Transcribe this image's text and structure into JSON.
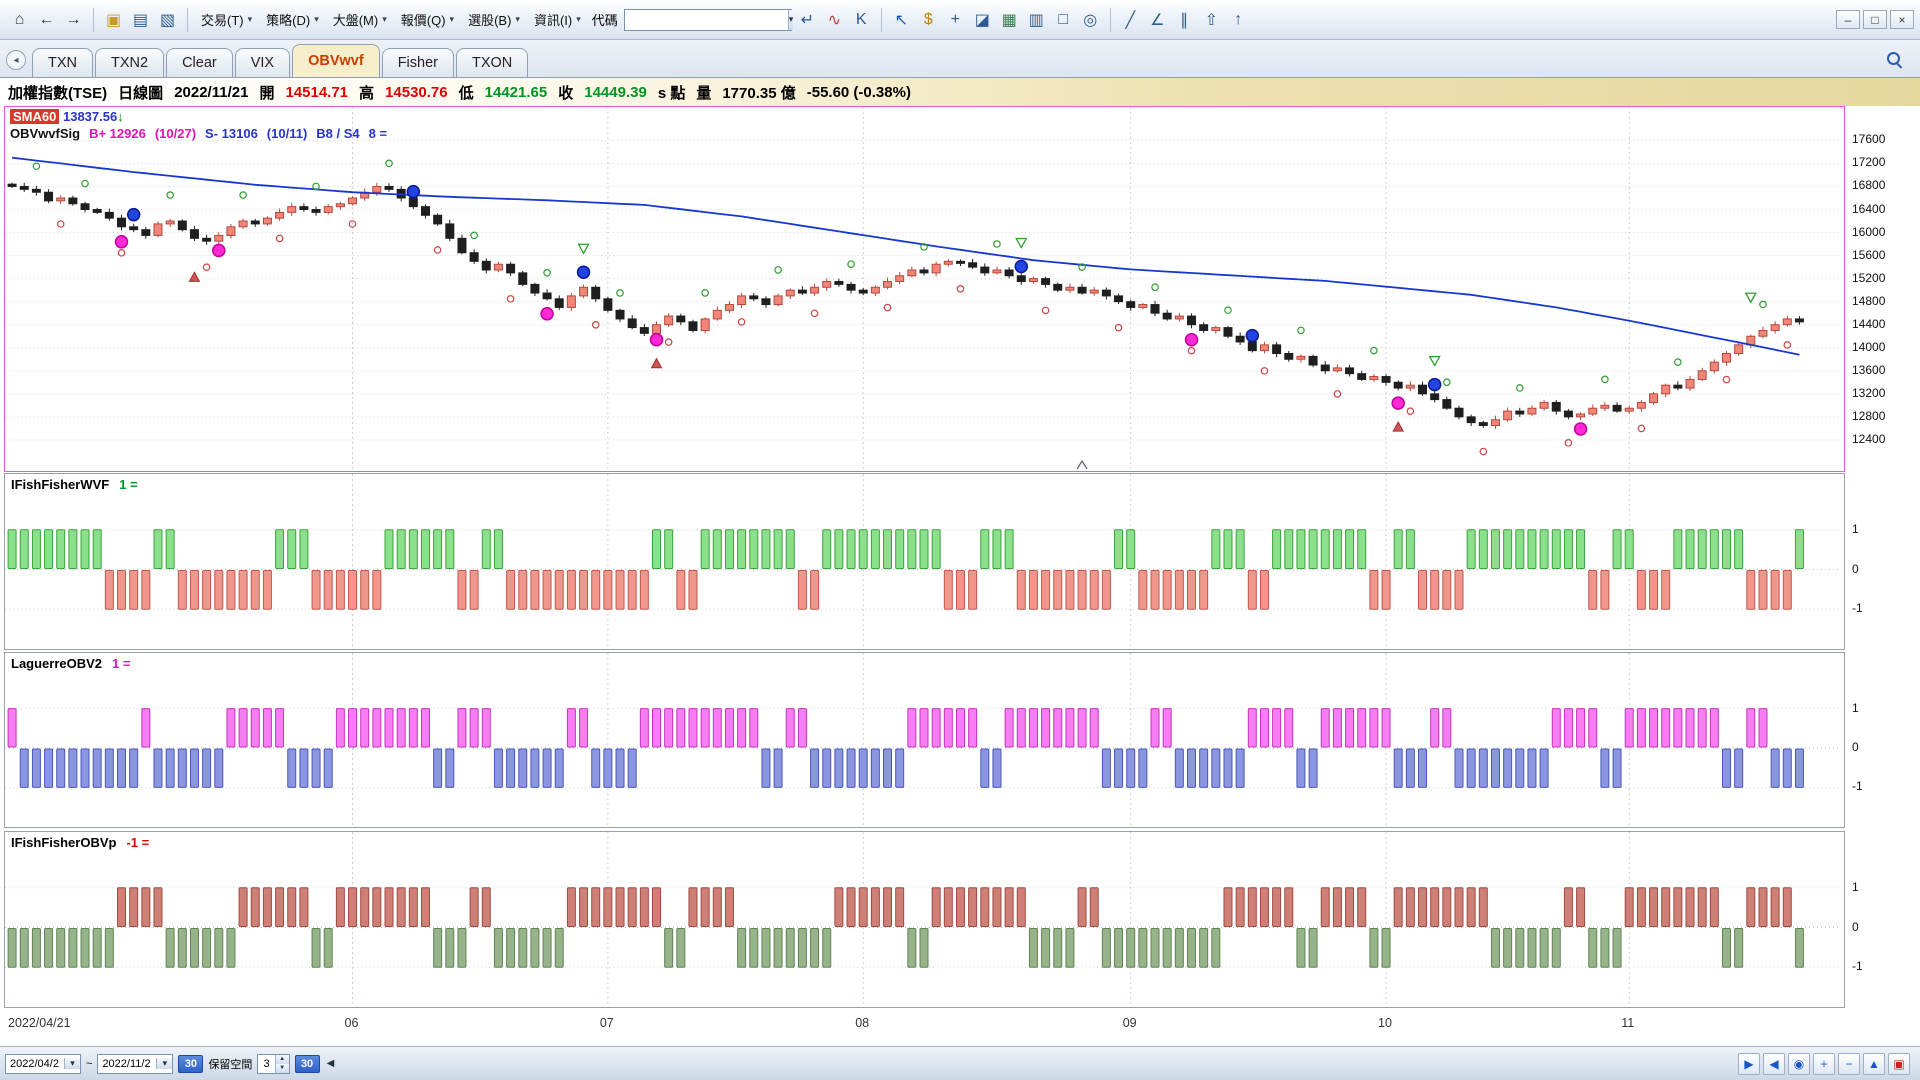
{
  "window_controls": {
    "minimize": "–",
    "maximize": "□",
    "close": "×"
  },
  "toolbar": {
    "nav_icons": [
      {
        "name": "home-icon",
        "glyph": "⌂",
        "color": "#444444"
      },
      {
        "name": "back-icon",
        "glyph": "←",
        "color": "#333333"
      },
      {
        "name": "forward-icon",
        "glyph": "→",
        "color": "#333333"
      }
    ],
    "file_icons": [
      {
        "name": "open-folder-icon",
        "glyph": "▣",
        "color": "#c9972a"
      },
      {
        "name": "print-icon",
        "glyph": "▤",
        "color": "#2c5c8f"
      },
      {
        "name": "new-chart-icon",
        "glyph": "▧",
        "color": "#2c5c8f"
      }
    ],
    "menus": [
      {
        "name": "menu-trade",
        "label": "交易(T)"
      },
      {
        "name": "menu-strategy",
        "label": "策略(D)"
      },
      {
        "name": "menu-market",
        "label": "大盤(M)"
      },
      {
        "name": "menu-quote",
        "label": "報價(Q)"
      },
      {
        "name": "menu-stock-screener",
        "label": "選股(B)"
      },
      {
        "name": "menu-info",
        "label": "資訊(I)"
      }
    ],
    "code_label": "代碼",
    "code_value": "",
    "tools_a": [
      {
        "name": "enter-icon",
        "glyph": "↵",
        "color": "#2c5c8f"
      },
      {
        "name": "line-chart-icon",
        "glyph": "∿",
        "color": "#c03a3a"
      },
      {
        "name": "kline-icon",
        "glyph": "K",
        "color": "#2c5c8f"
      }
    ],
    "tools_b": [
      {
        "name": "cursor-icon",
        "glyph": "↖",
        "color": "#1a57c4"
      },
      {
        "name": "dollar-icon",
        "glyph": "$",
        "color": "#b8860b"
      },
      {
        "name": "pan-icon",
        "glyph": "+",
        "color": "#2c5c8f"
      },
      {
        "name": "eraser-icon",
        "glyph": "◪",
        "color": "#2c5c8f"
      },
      {
        "name": "layers-icon",
        "glyph": "▦",
        "color": "#3a7a4a"
      },
      {
        "name": "volume-icon",
        "glyph": "▥",
        "color": "#2c5c8f"
      },
      {
        "name": "rectangle-icon",
        "glyph": "□",
        "color": "#2c5c8f"
      },
      {
        "name": "lasso-icon",
        "glyph": "◎",
        "color": "#2c5c8f"
      }
    ],
    "tools_c": [
      {
        "name": "trendline-icon",
        "glyph": "╱",
        "color": "#2c5c8f"
      },
      {
        "name": "angle-icon",
        "glyph": "∠",
        "color": "#2c5c8f"
      },
      {
        "name": "parallel-lines-icon",
        "glyph": "∥",
        "color": "#2c5c8f"
      },
      {
        "name": "export-icon",
        "glyph": "⇧",
        "color": "#2c5c8f"
      },
      {
        "name": "up-arrow-icon",
        "glyph": "↑",
        "color": "#2c5c8f"
      }
    ],
    "dropdown_arrow": "▾"
  },
  "tabs": {
    "items": [
      {
        "name": "tab-txn",
        "label": "TXN"
      },
      {
        "name": "tab-txn2",
        "label": "TXN2"
      },
      {
        "name": "tab-clear",
        "label": "Clear"
      },
      {
        "name": "tab-vix",
        "label": "VIX"
      },
      {
        "name": "tab-obvwvf",
        "label": "OBVwvf"
      },
      {
        "name": "tab-fisher",
        "label": "Fisher"
      },
      {
        "name": "tab-txon",
        "label": "TXON"
      }
    ],
    "active": "OBVwvf"
  },
  "info": {
    "segments": [
      {
        "text": "加權指數(TSE)",
        "color": "#000000"
      },
      {
        "text": "日線圖",
        "color": "#000000"
      },
      {
        "text": "2022/11/21",
        "color": "#000000"
      },
      {
        "text": "開",
        "color": "#000000"
      },
      {
        "text": "14514.71",
        "color": "#e10000"
      },
      {
        "text": "高",
        "color": "#000000"
      },
      {
        "text": "14530.76",
        "color": "#e10000"
      },
      {
        "text": "低",
        "color": "#000000"
      },
      {
        "text": "14421.65",
        "color": "#009423"
      },
      {
        "text": "收",
        "color": "#000000"
      },
      {
        "text": "14449.39",
        "color": "#009423"
      },
      {
        "text": "s 點",
        "color": "#000000"
      },
      {
        "text": "量",
        "color": "#000000"
      },
      {
        "text": "1770.35 億",
        "color": "#000000"
      },
      {
        "text": "-55.60 (-0.38%)",
        "color": "#000000"
      }
    ]
  },
  "main_overlay": {
    "sma_name": "SMA60",
    "sma_value": "13837.56",
    "sma_arrow": "↓",
    "line2_name": "OBVwvfSig",
    "b_plus": "B+ 12926",
    "b_date": "(10/27)",
    "s_minus": "S- 13106",
    "s_date": "(10/11)",
    "bs": "B8 / S4",
    "count": "8 ="
  },
  "chart_data": {
    "type": "candlestick",
    "title": "加權指數(TSE) 日線圖",
    "date": "2022/11/21",
    "open": 14514.71,
    "high": 14530.76,
    "low": 14421.65,
    "close": 14449.39,
    "volume": "1770.35 億",
    "change": "-55.60 (-0.38%)",
    "sma60": 13837.56,
    "ylim": [
      12400,
      17600
    ],
    "ytick_step": 400,
    "y_tick_labels": [
      "17600",
      "17200",
      "16800",
      "16400",
      "16000",
      "15600",
      "15200",
      "14800",
      "14400",
      "14000",
      "13600",
      "13200",
      "12800",
      "12400"
    ],
    "panel_tick_labels": [
      "1",
      "0",
      "-1"
    ],
    "first_label": "2022/04/21",
    "month_ticks": [
      {
        "index": 28,
        "label": "06"
      },
      {
        "index": 49,
        "label": "07"
      },
      {
        "index": 70,
        "label": "08"
      },
      {
        "index": 92,
        "label": "09"
      },
      {
        "index": 113,
        "label": "10"
      },
      {
        "index": 133,
        "label": "11"
      }
    ],
    "total_slots": 151,
    "closes": [
      16800,
      16750,
      16700,
      16550,
      16600,
      16500,
      16400,
      16350,
      16250,
      16100,
      16050,
      15950,
      16150,
      16200,
      16050,
      15900,
      15850,
      15950,
      16100,
      16200,
      16150,
      16250,
      16350,
      16450,
      16400,
      16350,
      16450,
      16500,
      16600,
      16700,
      16800,
      16750,
      16600,
      16450,
      16300,
      16150,
      15900,
      15650,
      15500,
      15350,
      15450,
      15300,
      15100,
      14950,
      14850,
      14700,
      14900,
      15050,
      14850,
      14650,
      14500,
      14350,
      14250,
      14400,
      14550,
      14450,
      14300,
      14500,
      14650,
      14750,
      14900,
      14850,
      14750,
      14900,
      15000,
      14950,
      15050,
      15150,
      15100,
      15000,
      14950,
      15050,
      15150,
      15250,
      15350,
      15300,
      15450,
      15500,
      15475,
      15400,
      15300,
      15350,
      15250,
      15150,
      15200,
      15100,
      15000,
      15050,
      14950,
      15000,
      14900,
      14800,
      14700,
      14750,
      14600,
      14500,
      14550,
      14400,
      14300,
      14350,
      14200,
      14100,
      13950,
      14050,
      13900,
      13800,
      13850,
      13700,
      13600,
      13650,
      13550,
      13450,
      13500,
      13400,
      13300,
      13350,
      13200,
      13100,
      12950,
      12800,
      12700,
      12650,
      12750,
      12900,
      12850,
      12950,
      13050,
      12900,
      12800,
      12850,
      12950,
      13000,
      12900,
      12950,
      13050,
      13200,
      13350,
      13300,
      13450,
      13600,
      13750,
      13900,
      14050,
      14200,
      14300,
      14400,
      14500,
      14449
    ],
    "sma_points": [
      [
        0,
        17300
      ],
      [
        10,
        17050
      ],
      [
        20,
        16830
      ],
      [
        28,
        16700
      ],
      [
        36,
        16620
      ],
      [
        44,
        16560
      ],
      [
        52,
        16480
      ],
      [
        60,
        16280
      ],
      [
        68,
        16020
      ],
      [
        76,
        15760
      ],
      [
        84,
        15520
      ],
      [
        92,
        15360
      ],
      [
        100,
        15260
      ],
      [
        108,
        15160
      ],
      [
        113,
        15060
      ],
      [
        120,
        14920
      ],
      [
        127,
        14700
      ],
      [
        133,
        14470
      ],
      [
        138,
        14260
      ],
      [
        143,
        14050
      ],
      [
        147,
        13880
      ]
    ],
    "signals": {
      "buy_dots": [
        10,
        33,
        47,
        83,
        102,
        117
      ],
      "sell_dots": [
        9,
        17,
        44,
        53,
        97,
        114,
        129
      ],
      "green_triangles": [
        47,
        83,
        117,
        143
      ],
      "red_triangles": [
        15,
        53,
        114
      ],
      "green_circles": [
        2,
        6,
        13,
        19,
        25,
        31,
        38,
        44,
        50,
        57,
        63,
        69,
        75,
        81,
        88,
        94,
        100,
        106,
        112,
        118,
        124,
        131,
        137,
        144
      ],
      "red_circles": [
        4,
        9,
        16,
        22,
        28,
        35,
        41,
        48,
        54,
        60,
        66,
        72,
        78,
        85,
        91,
        97,
        103,
        109,
        115,
        121,
        128,
        134,
        141,
        146
      ],
      "caret_index": 88
    },
    "indicators": [
      {
        "name": "IFishFisherWVF",
        "value_label": "1 =",
        "value_color": "#009423",
        "pos_color": "#8be08b",
        "pos_stroke": "#3aa33a",
        "neg_color": "#f0968c",
        "neg_stroke": "#c2584c",
        "runs": [
          8,
          -4,
          2,
          -8,
          3,
          -6,
          6,
          -2,
          2,
          -12,
          2,
          -2,
          8,
          -2,
          10,
          -3,
          3,
          -8,
          2,
          -6,
          3,
          -2,
          8,
          -2,
          2,
          -4,
          10,
          -2,
          2,
          -3,
          6,
          -4,
          2,
          -2,
          2,
          -8,
          2,
          -2,
          2,
          -2,
          4
        ]
      },
      {
        "name": "LaguerreOBV2",
        "value_label": "1 =",
        "value_color": "#e711b6",
        "pos_color": "#f77df2",
        "pos_stroke": "#c633c0",
        "neg_color": "#8a96e0",
        "neg_stroke": "#4b58b8",
        "runs": [
          1,
          -10,
          1,
          -6,
          5,
          -4,
          8,
          -2,
          3,
          -6,
          2,
          -4,
          10,
          -2,
          2,
          -8,
          6,
          -2,
          8,
          -4,
          2,
          -6,
          4,
          -2,
          6,
          -3,
          2,
          -8,
          4,
          -2,
          8,
          -2,
          2,
          -6,
          2,
          -2,
          8,
          -2,
          4
        ]
      },
      {
        "name": "IFishFisherOBVp",
        "value_label": "-1 =",
        "value_color": "#e10000",
        "pos_color": "#cf8076",
        "pos_stroke": "#a04a40",
        "neg_color": "#97b389",
        "neg_stroke": "#5f8553",
        "runs": [
          -9,
          4,
          -6,
          6,
          -2,
          8,
          -3,
          2,
          -6,
          8,
          -2,
          4,
          -8,
          6,
          -2,
          8,
          -4,
          2,
          -10,
          6,
          -2,
          4,
          -2,
          8,
          -6,
          2,
          -3,
          8,
          -2,
          4,
          -6,
          2,
          -2,
          6,
          -4,
          2
        ]
      }
    ]
  },
  "bottom": {
    "from_value": "2022/04/2",
    "range_tilde": "~",
    "to_value": "2022/11/2",
    "shift_left_label": "30",
    "reserve_label": "保留空間",
    "reserve_value": "3",
    "shift_right_label": "30",
    "back_arrow": "◀",
    "nav_icons": [
      {
        "name": "scroll-right-icon",
        "glyph": "▶",
        "color": "#1a57c4"
      },
      {
        "name": "prev-page-icon",
        "glyph": "◀",
        "color": "#1a57c4"
      },
      {
        "name": "realtime-icon",
        "glyph": "◉",
        "color": "#1a57c4"
      },
      {
        "name": "zoom-in-icon",
        "glyph": "+",
        "color": "#1a57c4"
      },
      {
        "name": "zoom-out-icon",
        "glyph": "−",
        "color": "#1a57c4"
      },
      {
        "name": "scroll-up-icon",
        "glyph": "▲",
        "color": "#1a57c4"
      },
      {
        "name": "alert-icon",
        "glyph": "▣",
        "color": "#cc2222"
      }
    ]
  }
}
